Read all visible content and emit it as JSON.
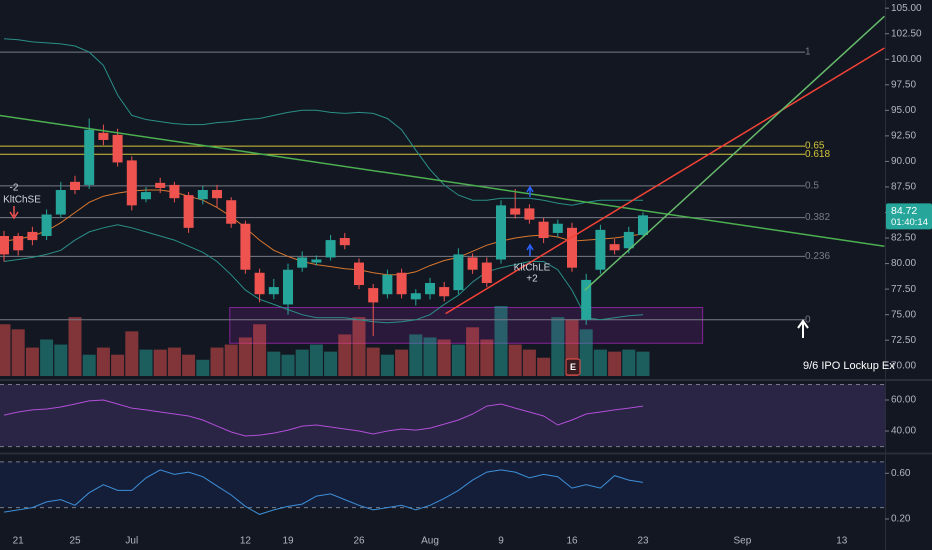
{
  "chart_data": [
    {
      "type": "candlestick",
      "categories": [
        null,
        "21",
        null,
        null,
        null,
        "25",
        null,
        null,
        null,
        "Jul",
        null,
        null,
        null,
        null,
        null,
        null,
        null,
        "12",
        null,
        null,
        "19",
        null,
        null,
        null,
        null,
        "26",
        null,
        null,
        null,
        null,
        "Aug",
        null,
        null,
        null,
        null,
        "9",
        null,
        null,
        null,
        null,
        "16",
        null,
        null,
        null,
        null,
        "23",
        null,
        null,
        null,
        null,
        null,
        null,
        "Sep",
        null,
        null,
        null,
        null,
        null,
        null,
        "13",
        null,
        null
      ],
      "ylim": [
        68.8,
        105.8
      ],
      "yticks": [
        {
          "value": 70,
          "label": "70.00"
        },
        {
          "value": 72.5,
          "label": "72.50"
        },
        {
          "value": 75,
          "label": "75.00"
        },
        {
          "value": 77.5,
          "label": "77.50"
        },
        {
          "value": 80,
          "label": "80.00"
        },
        {
          "value": 82.5,
          "label": "82.50"
        },
        {
          "value": 85,
          "label": "85.00"
        },
        {
          "value": 87.5,
          "label": "87.50"
        },
        {
          "value": 90,
          "label": "90.00"
        },
        {
          "value": 92.5,
          "label": "92.50"
        },
        {
          "value": 95,
          "label": "95.00"
        },
        {
          "value": 97.5,
          "label": "97.50"
        },
        {
          "value": 100,
          "label": "100.00"
        },
        {
          "value": 102.5,
          "label": "102.50"
        },
        {
          "value": 105,
          "label": "105.00"
        }
      ],
      "up_color": "#26a69a",
      "down_color": "#ef5350",
      "open": [
        82.7,
        82.7,
        83.1,
        82.7,
        84.8,
        88.0,
        87.7,
        92.8,
        92.6,
        90.1,
        86.3,
        87.9,
        87.7,
        86.7,
        86.3,
        87.2,
        86.2,
        83.9,
        79.1,
        77.0,
        76.0,
        79.6,
        80.1,
        80.6,
        82.5,
        80.1,
        77.6,
        77.0,
        79.1,
        76.5,
        77.0,
        77.7,
        77.4,
        80.6,
        80.1,
        80.4,
        85.4,
        85.4,
        84.1,
        83.0,
        83.5,
        74.5,
        79.4,
        81.9,
        81.5,
        82.8,
        null,
        null,
        null,
        null,
        null,
        null,
        null,
        null,
        null,
        null,
        null,
        null,
        null,
        null,
        null,
        null
      ],
      "high": [
        83.2,
        83.0,
        83.6,
        85.3,
        88.0,
        88.6,
        94.2,
        93.6,
        93.2,
        90.5,
        87.5,
        88.4,
        88.0,
        87.0,
        87.6,
        87.7,
        86.5,
        84.2,
        79.5,
        78.5,
        80.0,
        81.2,
        80.8,
        82.8,
        83.0,
        80.5,
        78.0,
        79.4,
        79.5,
        77.5,
        78.6,
        78.2,
        81.5,
        81.0,
        80.6,
        86.2,
        87.3,
        85.8,
        84.5,
        84.3,
        84.0,
        79.0,
        83.8,
        82.4,
        83.6,
        85.0,
        null,
        null,
        null,
        null,
        null,
        null,
        null,
        null,
        null,
        null,
        null,
        null,
        null,
        null,
        null,
        null
      ],
      "low": [
        80.2,
        80.8,
        81.8,
        82.3,
        84.5,
        86.8,
        87.3,
        91.6,
        89.5,
        85.2,
        86.0,
        86.9,
        86.0,
        83.0,
        85.8,
        85.5,
        83.5,
        79.0,
        76.2,
        76.5,
        75.0,
        79.2,
        79.8,
        80.3,
        81.4,
        77.5,
        72.9,
        76.6,
        76.6,
        75.9,
        76.5,
        76.3,
        77.0,
        79.0,
        77.7,
        80.0,
        84.4,
        83.9,
        82.0,
        82.6,
        79.2,
        74.0,
        79.0,
        80.9,
        81.0,
        82.5,
        null,
        null,
        null,
        null,
        null,
        null,
        null,
        null,
        null,
        null,
        null,
        null,
        null,
        null,
        null,
        null
      ],
      "close": [
        80.9,
        81.3,
        82.3,
        84.8,
        87.2,
        87.2,
        93.1,
        92.1,
        89.9,
        85.7,
        87.0,
        87.4,
        86.4,
        83.5,
        87.2,
        86.4,
        83.9,
        79.4,
        77.0,
        77.7,
        79.4,
        80.6,
        80.4,
        82.3,
        81.8,
        77.9,
        76.2,
        78.9,
        77.0,
        77.1,
        78.1,
        76.8,
        80.9,
        79.4,
        78.1,
        85.7,
        84.8,
        84.3,
        82.5,
        83.9,
        79.6,
        78.4,
        83.3,
        81.3,
        83.1,
        84.72,
        null,
        null,
        null,
        null,
        null,
        null,
        null,
        null,
        null,
        null,
        null,
        null,
        null,
        null,
        null,
        null
      ],
      "volume": {
        "values": [
          2.55,
          2.3,
          1.4,
          1.8,
          1.55,
          2.9,
          1.05,
          1.4,
          1.05,
          2.2,
          1.3,
          1.3,
          1.4,
          1.05,
          0.8,
          1.4,
          1.55,
          1.9,
          2.55,
          1.2,
          1.05,
          1.3,
          1.55,
          1.2,
          2.05,
          2.9,
          1.4,
          1.05,
          1.3,
          2.05,
          1.9,
          1.8,
          1.55,
          2.4,
          1.8,
          3.45,
          1.55,
          1.3,
          0.9,
          2.9,
          2.8,
          2.3,
          1.3,
          1.2,
          1.3,
          1.2,
          null,
          null,
          null,
          null,
          null,
          null,
          null,
          null,
          null,
          null,
          null,
          null,
          null,
          null,
          null,
          null
        ]
      },
      "lines": [
        {
          "color": "#2a8f88",
          "values": [
            102.0,
            101.9,
            101.7,
            101.6,
            101.5,
            101.3,
            100.7,
            99.4,
            96.5,
            94.5,
            94.1,
            93.9,
            93.7,
            93.6,
            93.6,
            93.8,
            93.9,
            94.1,
            94.2,
            94.5,
            94.8,
            95.0,
            95.0,
            94.8,
            94.7,
            94.8,
            94.7,
            94.2,
            93.1,
            91.1,
            89.2,
            87.7,
            86.7,
            86.2,
            86.2,
            86.4,
            86.4,
            86.4,
            86.2,
            85.9,
            85.7,
            86.0,
            86.2,
            86.2,
            86.2,
            86.2,
            null,
            null,
            null,
            null,
            null,
            null,
            null,
            null,
            null,
            null,
            null,
            null,
            null,
            null,
            null,
            null
          ]
        },
        {
          "color": "#2a8f88",
          "values": [
            80.2,
            80.4,
            80.6,
            80.9,
            81.3,
            82.3,
            83.1,
            83.5,
            83.8,
            83.5,
            83.1,
            82.7,
            82.3,
            81.7,
            81.1,
            80.2,
            78.9,
            77.4,
            76.5,
            76.0,
            75.5,
            75.0,
            74.7,
            74.7,
            74.7,
            74.5,
            74.3,
            74.2,
            74.3,
            74.5,
            75.0,
            76.0,
            76.9,
            78.2,
            79.2,
            79.6,
            79.9,
            80.2,
            80.2,
            79.4,
            77.4,
            74.7,
            74.5,
            74.7,
            74.9,
            75.0,
            null,
            null,
            null,
            null,
            null,
            null,
            null,
            null,
            null,
            null,
            null,
            null,
            null,
            null,
            null,
            null
          ]
        },
        {
          "color": "#d9782f",
          "values": [
            82.2,
            82.4,
            82.7,
            83.2,
            84.0,
            85.0,
            86.0,
            86.6,
            86.9,
            87.1,
            87.2,
            87.2,
            87.0,
            86.6,
            86.2,
            85.5,
            84.6,
            83.5,
            82.3,
            81.3,
            80.7,
            80.2,
            79.9,
            79.7,
            79.5,
            79.4,
            79.1,
            78.9,
            78.9,
            79.2,
            79.8,
            80.3,
            80.6,
            81.2,
            81.8,
            82.2,
            82.5,
            82.7,
            82.8,
            82.6,
            82.2,
            82.3,
            82.4,
            82.5,
            82.7,
            82.9,
            null,
            null,
            null,
            null,
            null,
            null,
            null,
            null,
            null,
            null,
            null,
            null,
            null,
            null,
            null,
            null
          ]
        }
      ],
      "fib_levels": [
        {
          "level": 1,
          "price": 100.7,
          "color": "#787b86"
        },
        {
          "level": 0.65,
          "price": 91.5,
          "color": "#d4c53a"
        },
        {
          "level": 0.618,
          "price": 90.7,
          "color": "#d4c53a"
        },
        {
          "level": 0.5,
          "price": 87.6,
          "color": "#787b86"
        },
        {
          "level": 0.382,
          "price": 84.5,
          "color": "#787b86"
        },
        {
          "level": 0.236,
          "price": 80.7,
          "color": "#787b86"
        },
        {
          "level": 0,
          "price": 74.5,
          "color": "#787b86"
        }
      ],
      "trendlines": [
        {
          "color": "#4caf50",
          "points": [
            [
              -0.3,
              94.5
            ],
            [
              62.0,
              81.7
            ]
          ]
        },
        {
          "color": "#f44336",
          "points": [
            [
              31.1,
              75.1
            ],
            [
              62.0,
              101.1
            ]
          ]
        },
        {
          "color": "#66bb6a",
          "points": [
            [
              40.9,
              77.4
            ],
            [
              62.0,
              104.2
            ]
          ]
        }
      ],
      "zone": {
        "x": [
          15.9,
          49.2
        ],
        "y": [
          72.2,
          75.7
        ],
        "color": "#9c27b0"
      },
      "last_price": {
        "value": 84.72,
        "countdown": "01:40:14",
        "color": "#26a69a"
      },
      "annotations": {
        "short_label": "KltChSE",
        "short_count": "-2",
        "long_label": "KltChLE",
        "long_count": "+2",
        "earnings": "E",
        "event": "9/6 IPO Lockup Ex"
      }
    },
    {
      "type": "line",
      "color": "#b04fd6",
      "ylim": [
        26.5,
        71.6
      ],
      "yticks": [
        {
          "value": 40,
          "label": "40.00"
        },
        {
          "value": 60,
          "label": "60.00"
        }
      ],
      "band": [
        30,
        70
      ],
      "band_color": "#7e57c2",
      "values": [
        50.3,
        52.3,
        53.6,
        54.2,
        55.5,
        57.4,
        59.4,
        60.0,
        57.4,
        54.8,
        53.6,
        52.3,
        51.0,
        49.7,
        47.1,
        43.2,
        39.4,
        36.8,
        37.4,
        38.7,
        40.6,
        43.2,
        43.9,
        42.6,
        41.3,
        40.0,
        38.1,
        40.0,
        41.3,
        40.6,
        41.9,
        44.5,
        47.1,
        51.0,
        56.1,
        57.4,
        54.8,
        52.3,
        49.7,
        43.9,
        47.1,
        51.0,
        52.3,
        53.6,
        54.8,
        56.1,
        null,
        null,
        null,
        null,
        null,
        null,
        null,
        null,
        null,
        null,
        null,
        null,
        null,
        null,
        null,
        null
      ]
    },
    {
      "type": "line",
      "color": "#3d8fd9",
      "ylim": [
        0.06,
        0.76
      ],
      "yticks": [
        {
          "value": 0.2,
          "label": "0.20"
        },
        {
          "value": 0.6,
          "label": "0.60"
        }
      ],
      "band": [
        0.3,
        0.7
      ],
      "band_color": "#1e3a8a",
      "values": [
        0.26,
        0.28,
        0.3,
        0.35,
        0.37,
        0.32,
        0.43,
        0.5,
        0.45,
        0.45,
        0.56,
        0.63,
        0.59,
        0.61,
        0.57,
        0.49,
        0.41,
        0.31,
        0.24,
        0.28,
        0.31,
        0.33,
        0.4,
        0.42,
        0.37,
        0.32,
        0.28,
        0.3,
        0.32,
        0.28,
        0.32,
        0.38,
        0.45,
        0.54,
        0.61,
        0.63,
        0.61,
        0.56,
        0.59,
        0.57,
        0.47,
        0.5,
        0.47,
        0.58,
        0.54,
        0.52,
        null,
        null,
        null,
        null,
        null,
        null,
        null,
        null,
        null,
        null,
        null,
        null,
        null,
        null,
        null,
        null
      ]
    }
  ]
}
